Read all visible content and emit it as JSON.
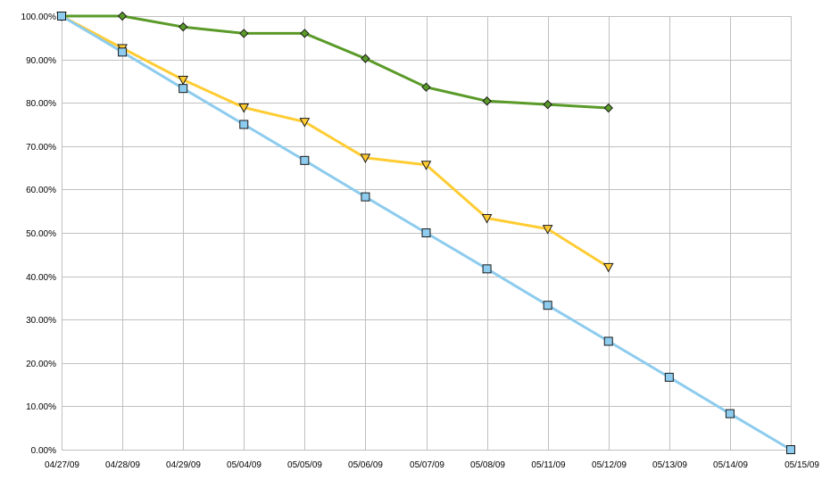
{
  "chart_data": {
    "type": "line",
    "title": "",
    "xlabel": "",
    "ylabel": "",
    "categories": [
      "04/27/09",
      "04/28/09",
      "04/29/09",
      "05/04/09",
      "05/05/09",
      "05/06/09",
      "05/07/09",
      "05/08/09",
      "05/11/09",
      "05/12/09",
      "05/13/09",
      "05/14/09",
      "05/15/09"
    ],
    "ylim": [
      0,
      100
    ],
    "yticks": [
      0,
      10,
      20,
      30,
      40,
      50,
      60,
      70,
      80,
      90,
      100
    ],
    "ytick_labels": [
      "0.00%",
      "10.00%",
      "20.00%",
      "30.00%",
      "40.00%",
      "50.00%",
      "60.00%",
      "70.00%",
      "80.00%",
      "90.00%",
      "100.00%"
    ],
    "grid": true,
    "legend": "none",
    "series": [
      {
        "color": "#5a9a28",
        "marker": "diamond",
        "values": [
          100,
          100,
          97.5,
          96,
          96,
          90.2,
          83.6,
          80.4,
          79.6,
          78.8,
          null,
          null,
          null
        ]
      },
      {
        "color": "#ffcc33",
        "marker": "triangle-down",
        "values": [
          100,
          92.6,
          85.3,
          78.9,
          75.6,
          67.3,
          65.7,
          53.4,
          50.9,
          42.1,
          null,
          null,
          null
        ]
      },
      {
        "color": "#8dccee",
        "marker": "square",
        "values": [
          100,
          91.7,
          83.3,
          75,
          66.7,
          58.3,
          50,
          41.7,
          33.3,
          25,
          16.7,
          8.3,
          0
        ]
      }
    ]
  }
}
